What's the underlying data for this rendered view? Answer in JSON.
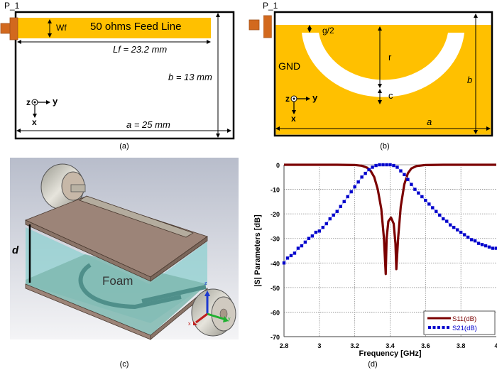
{
  "panel_a": {
    "port_label": "P_1",
    "feed_label": "50 ohms Feed Line",
    "width_label": "Wf",
    "length_label": "Lf = 23.2 mm",
    "height_label": "b = 13 mm",
    "width_dim_label": "a = 25 mm",
    "axis_z": "z",
    "axis_y": "y",
    "axis_x": "x",
    "caption": "(a)",
    "feed_color": "#FFC000",
    "connector_color": "#D2691E"
  },
  "panel_b": {
    "port_label": "P_1",
    "gnd_label": "GND",
    "gap_label": "g/2",
    "radius_label": "r",
    "slot_width_label": "c",
    "height_label": "b",
    "width_label": "a",
    "axis_z": "z",
    "axis_y": "y",
    "axis_x": "x",
    "caption": "(b)",
    "gnd_color": "#FFC000"
  },
  "panel_c": {
    "height_label": "d",
    "foam_label": "Foam",
    "axis_z": "z",
    "axis_x": "x",
    "axis_y": "y",
    "caption": "(c)",
    "substrate_color": "#9C8478",
    "foam_color": "#8FD0D0"
  },
  "panel_d": {
    "caption": "(d)"
  },
  "chart_data": {
    "type": "line",
    "title": "",
    "xlabel": "Frequency [GHz]",
    "ylabel": "|S| Parameters [dB]",
    "xlim": [
      2.8,
      4.0
    ],
    "ylim": [
      -70,
      0
    ],
    "xticks": [
      "2.8",
      "3",
      "3.2",
      "3.4",
      "3.6",
      "3.8",
      "4"
    ],
    "yticks": [
      "0",
      "-10",
      "-20",
      "-30",
      "-40",
      "-50",
      "-60",
      "-70"
    ],
    "grid": true,
    "legend_position": "lower right",
    "series": [
      {
        "name": "S11(dB)",
        "color": "#7B0000",
        "style": "solid",
        "x": [
          2.8,
          3.0,
          3.1,
          3.2,
          3.24,
          3.27,
          3.29,
          3.31,
          3.33,
          3.35,
          3.365,
          3.375,
          3.38,
          3.39,
          3.405,
          3.42,
          3.43,
          3.435,
          3.445,
          3.46,
          3.48,
          3.5,
          3.52,
          3.55,
          3.6,
          3.7,
          3.8,
          4.0
        ],
        "values": [
          0,
          0,
          0,
          -0.1,
          -0.4,
          -1.2,
          -2.5,
          -5,
          -10,
          -18,
          -30,
          -44.5,
          -30,
          -23,
          -21.5,
          -24,
          -32,
          -42.5,
          -30,
          -17,
          -8,
          -3.5,
          -1.5,
          -0.5,
          -0.1,
          0,
          0,
          0
        ]
      },
      {
        "name": "S21(dB)",
        "color": "#0000CC",
        "style": "dotted",
        "x": [
          2.8,
          2.82,
          2.84,
          2.86,
          2.88,
          2.9,
          2.92,
          2.94,
          2.96,
          2.98,
          3.0,
          3.02,
          3.04,
          3.06,
          3.08,
          3.1,
          3.12,
          3.14,
          3.16,
          3.18,
          3.2,
          3.22,
          3.24,
          3.26,
          3.28,
          3.3,
          3.32,
          3.34,
          3.36,
          3.38,
          3.4,
          3.42,
          3.44,
          3.46,
          3.48,
          3.5,
          3.52,
          3.54,
          3.56,
          3.58,
          3.6,
          3.62,
          3.64,
          3.66,
          3.68,
          3.7,
          3.72,
          3.74,
          3.76,
          3.78,
          3.8,
          3.82,
          3.84,
          3.86,
          3.88,
          3.9,
          3.92,
          3.94,
          3.96,
          3.98,
          4.0
        ],
        "values": [
          -40,
          -38,
          -37,
          -36,
          -34,
          -33,
          -31.5,
          -30,
          -29,
          -27.5,
          -27,
          -25.5,
          -24,
          -22,
          -20.5,
          -19,
          -17,
          -15,
          -13,
          -11,
          -9,
          -7,
          -5,
          -3.5,
          -2,
          -1,
          -0.3,
          0,
          0,
          0,
          0,
          -0.3,
          -1,
          -2.5,
          -4,
          -6,
          -8,
          -10,
          -11.5,
          -13,
          -14.5,
          -16,
          -17.5,
          -19,
          -20.5,
          -22,
          -23,
          -24.5,
          -25.5,
          -26.5,
          -27.5,
          -28.5,
          -29.5,
          -30.5,
          -31,
          -32,
          -32.5,
          -33,
          -33.5,
          -34,
          -34
        ]
      }
    ]
  }
}
